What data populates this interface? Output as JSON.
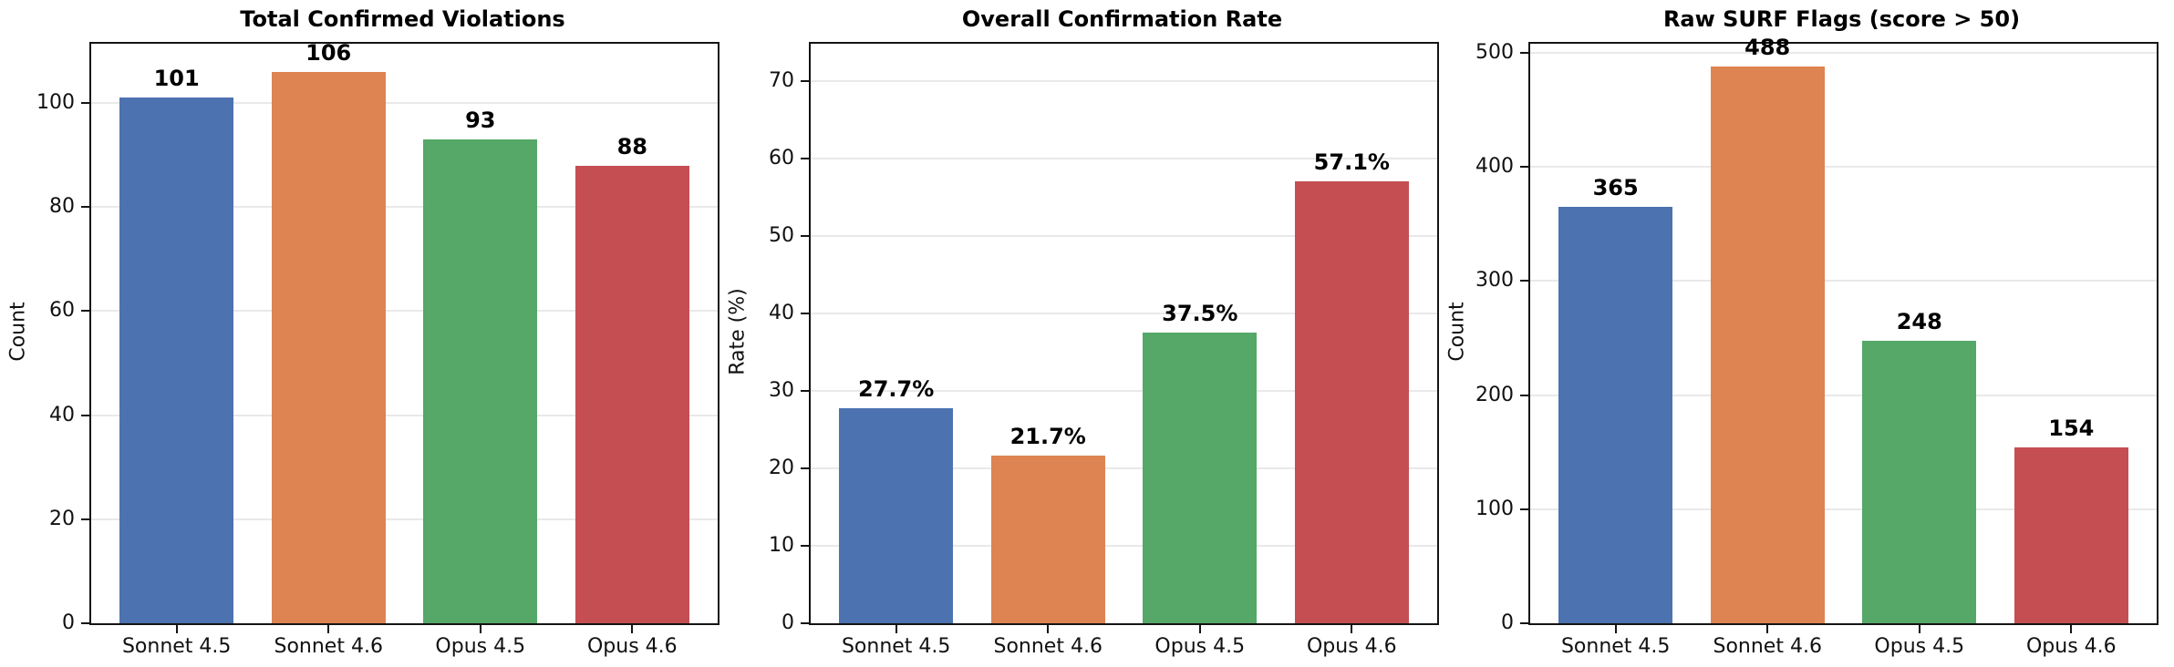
{
  "palette": {
    "bar_colors": [
      "#4C72B0",
      "#DD8452",
      "#55A868",
      "#C44E52"
    ],
    "gridline": "#e9e9e9",
    "spine": "#141414",
    "text": "#000000"
  },
  "chart_data": [
    {
      "type": "bar",
      "title": "Total Confirmed Violations",
      "xlabel": "",
      "ylabel": "Count",
      "categories": [
        "Sonnet 4.5",
        "Sonnet 4.6",
        "Opus 4.5",
        "Opus 4.6"
      ],
      "values": [
        101,
        106,
        93,
        88
      ],
      "value_labels": [
        "101",
        "106",
        "93",
        "88"
      ],
      "yticks": [
        0,
        20,
        40,
        60,
        80,
        100
      ],
      "ylim": [
        0,
        111.4
      ],
      "grid": true,
      "legend": false
    },
    {
      "type": "bar",
      "title": "Overall Confirmation Rate",
      "xlabel": "",
      "ylabel": "Rate (%)",
      "categories": [
        "Sonnet 4.5",
        "Sonnet 4.6",
        "Opus 4.5",
        "Opus 4.6"
      ],
      "values": [
        27.7,
        21.7,
        37.5,
        57.1
      ],
      "value_labels": [
        "27.7%",
        "21.7%",
        "37.5%",
        "57.1%"
      ],
      "yticks": [
        0,
        10,
        20,
        30,
        40,
        50,
        60,
        70
      ],
      "ylim": [
        0,
        74.8
      ],
      "grid": true,
      "legend": false
    },
    {
      "type": "bar",
      "title": "Raw SURF Flags (score > 50)",
      "xlabel": "",
      "ylabel": "Count",
      "categories": [
        "Sonnet 4.5",
        "Sonnet 4.6",
        "Opus 4.5",
        "Opus 4.6"
      ],
      "values": [
        365,
        488,
        248,
        154
      ],
      "value_labels": [
        "365",
        "488",
        "248",
        "154"
      ],
      "yticks": [
        0,
        100,
        200,
        300,
        400,
        500
      ],
      "ylim": [
        0,
        508
      ],
      "grid": true,
      "legend": false
    }
  ]
}
